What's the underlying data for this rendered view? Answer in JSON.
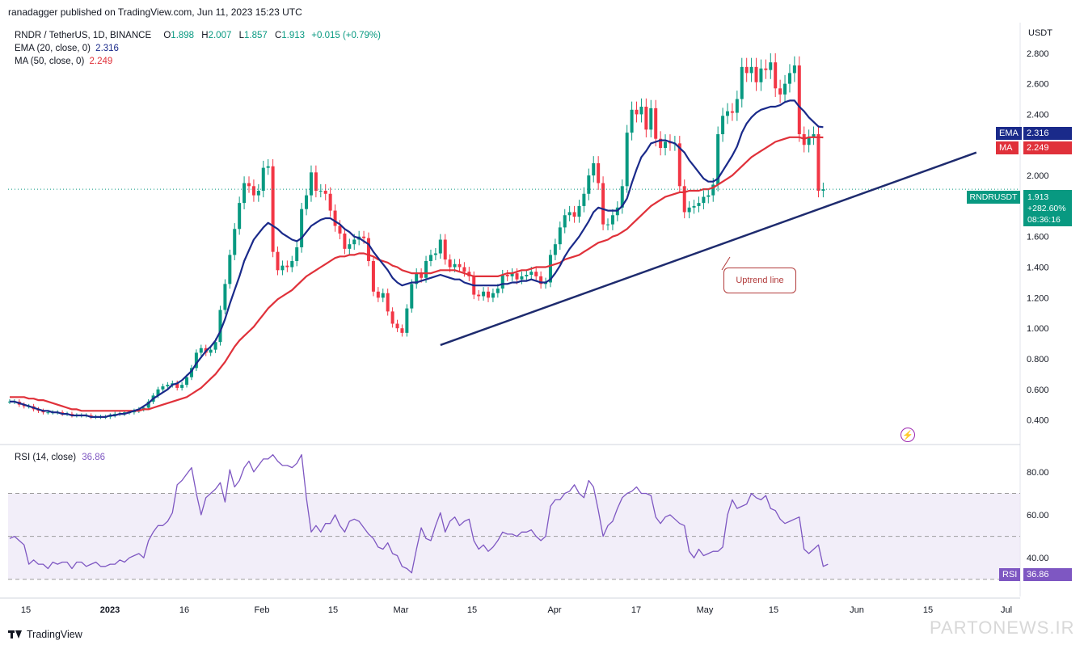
{
  "attribution": "ranadagger published on TradingView.com, Jun 11, 2023 15:23 UTC",
  "legend": {
    "symbol": "RNDR / TetherUS, 1D, BINANCE",
    "o_label": "O",
    "o_value": "1.898",
    "h_label": "H",
    "h_value": "2.007",
    "l_label": "L",
    "l_value": "1.857",
    "c_label": "C",
    "c_value": "1.913",
    "change": "+0.015 (+0.79%)",
    "ema_label": "EMA (20, close, 0)",
    "ema_value": "2.316",
    "ma_label": "MA (50, close, 0)",
    "ma_value": "2.249"
  },
  "rsi_legend": {
    "label": "RSI (14, close)",
    "value": "36.86"
  },
  "axis_unit": "USDT",
  "tags": {
    "ema_label": "EMA",
    "ema_value": "2.316",
    "ma_label": "MA",
    "ma_value": "2.249",
    "symbol": "RNDRUSDT",
    "price": "1.913",
    "change_pct": "+282.60%",
    "countdown": "08:36:16",
    "rsi_label": "RSI",
    "rsi_value": "36.86"
  },
  "annotation": "Uptrend line",
  "footer_logo": "TradingView",
  "watermark": "PARTONEWS.IR",
  "colors": {
    "up": "#089981",
    "down": "#f23645",
    "ema": "#1a2a8a",
    "ma": "#e0313a",
    "rsi": "#7e57c2",
    "trendline": "#1e2b6e"
  },
  "chart_data": {
    "type": "candlestick",
    "title": "RNDR / TetherUS, 1D, BINANCE",
    "x_ticks": [
      "15",
      "2023",
      "16",
      "Feb",
      "15",
      "Mar",
      "15",
      "Apr",
      "17",
      "May",
      "15",
      "Jun",
      "15",
      "Jul"
    ],
    "y_ticks": [
      "0.400",
      "0.600",
      "0.800",
      "1.000",
      "1.200",
      "1.400",
      "1.600",
      "1.800",
      "2.000",
      "2.200",
      "2.400",
      "2.600",
      "2.800"
    ],
    "ylim": [
      0.25,
      3.0
    ],
    "rsi_ticks": [
      "40.00",
      "60.00",
      "80.00"
    ],
    "rsi_bands": [
      30,
      50,
      70
    ],
    "trendline": {
      "from": {
        "date": "Mar 9",
        "value": 0.89
      },
      "to": {
        "date": "Jun 24",
        "value": 2.15
      }
    },
    "series": [
      {
        "name": "close",
        "values": [
          0.52,
          0.52,
          0.5,
          0.49,
          0.49,
          0.47,
          0.46,
          0.45,
          0.45,
          0.45,
          0.45,
          0.44,
          0.44,
          0.43,
          0.43,
          0.43,
          0.43,
          0.42,
          0.42,
          0.42,
          0.42,
          0.43,
          0.44,
          0.44,
          0.45,
          0.45,
          0.46,
          0.47,
          0.48,
          0.52,
          0.56,
          0.6,
          0.62,
          0.63,
          0.64,
          0.61,
          0.63,
          0.68,
          0.74,
          0.84,
          0.87,
          0.84,
          0.86,
          0.91,
          1.12,
          1.29,
          1.48,
          1.65,
          1.82,
          1.95,
          1.93,
          1.87,
          1.9,
          2.05,
          2.06,
          1.5,
          1.38,
          1.41,
          1.4,
          1.44,
          1.53,
          1.78,
          1.87,
          2.02,
          1.9,
          1.9,
          1.88,
          1.77,
          1.67,
          1.62,
          1.52,
          1.55,
          1.58,
          1.6,
          1.59,
          1.44,
          1.24,
          1.2,
          1.23,
          1.11,
          1.03,
          1.0,
          0.97,
          1.13,
          1.29,
          1.36,
          1.33,
          1.44,
          1.48,
          1.49,
          1.58,
          1.45,
          1.4,
          1.42,
          1.4,
          1.37,
          1.34,
          1.22,
          1.21,
          1.24,
          1.2,
          1.23,
          1.26,
          1.35,
          1.34,
          1.36,
          1.32,
          1.34,
          1.35,
          1.37,
          1.34,
          1.29,
          1.3,
          1.48,
          1.55,
          1.66,
          1.74,
          1.76,
          1.73,
          1.8,
          1.88,
          2.0,
          2.08,
          1.95,
          1.68,
          1.68,
          1.74,
          1.79,
          1.93,
          2.28,
          2.43,
          2.4,
          2.45,
          2.3,
          2.44,
          2.24,
          2.18,
          2.22,
          2.21,
          2.21,
          1.93,
          1.76,
          1.79,
          1.8,
          1.82,
          1.86,
          1.87,
          1.94,
          2.27,
          2.39,
          2.42,
          2.41,
          2.5,
          2.71,
          2.67,
          2.71,
          2.61,
          2.7,
          2.69,
          2.74,
          2.57,
          2.53,
          2.6,
          2.67,
          2.72,
          2.27,
          2.2,
          2.25,
          2.27,
          1.9,
          1.91
        ]
      },
      {
        "name": "EMA (20, close, 0)",
        "values": [
          0.52,
          0.52,
          0.51,
          0.5,
          0.49,
          0.48,
          0.47,
          0.46,
          0.46,
          0.45,
          0.45,
          0.44,
          0.44,
          0.43,
          0.43,
          0.43,
          0.43,
          0.42,
          0.42,
          0.42,
          0.42,
          0.43,
          0.43,
          0.44,
          0.44,
          0.45,
          0.46,
          0.47,
          0.49,
          0.51,
          0.54,
          0.56,
          0.58,
          0.6,
          0.63,
          0.64,
          0.66,
          0.69,
          0.72,
          0.77,
          0.81,
          0.85,
          0.88,
          0.92,
          0.98,
          1.06,
          1.16,
          1.25,
          1.34,
          1.44,
          1.51,
          1.58,
          1.62,
          1.66,
          1.69,
          1.67,
          1.65,
          1.62,
          1.6,
          1.58,
          1.57,
          1.59,
          1.63,
          1.67,
          1.69,
          1.71,
          1.72,
          1.72,
          1.7,
          1.68,
          1.65,
          1.63,
          1.6,
          1.59,
          1.57,
          1.55,
          1.5,
          1.46,
          1.42,
          1.38,
          1.33,
          1.3,
          1.28,
          1.29,
          1.3,
          1.3,
          1.31,
          1.32,
          1.33,
          1.34,
          1.35,
          1.34,
          1.33,
          1.32,
          1.32,
          1.3,
          1.29,
          1.28,
          1.28,
          1.28,
          1.28,
          1.28,
          1.28,
          1.29,
          1.29,
          1.3,
          1.3,
          1.31,
          1.31,
          1.32,
          1.31,
          1.3,
          1.3,
          1.32,
          1.36,
          1.41,
          1.47,
          1.52,
          1.56,
          1.6,
          1.65,
          1.7,
          1.76,
          1.79,
          1.78,
          1.77,
          1.77,
          1.77,
          1.8,
          1.85,
          1.95,
          2.04,
          2.12,
          2.16,
          2.21,
          2.22,
          2.23,
          2.23,
          2.22,
          2.21,
          2.18,
          2.15,
          2.1,
          2.06,
          2.02,
          1.98,
          1.96,
          1.96,
          1.98,
          2.03,
          2.08,
          2.13,
          2.19,
          2.28,
          2.34,
          2.38,
          2.41,
          2.43,
          2.44,
          2.45,
          2.45,
          2.46,
          2.48,
          2.49,
          2.49,
          2.45,
          2.42,
          2.38,
          2.35,
          2.32,
          2.316
        ]
      },
      {
        "name": "MA (50, close, 0)",
        "values": [
          0.55,
          0.55,
          0.55,
          0.55,
          0.54,
          0.54,
          0.53,
          0.53,
          0.52,
          0.51,
          0.5,
          0.49,
          0.48,
          0.47,
          0.47,
          0.46,
          0.46,
          0.46,
          0.46,
          0.46,
          0.46,
          0.46,
          0.46,
          0.46,
          0.46,
          0.46,
          0.46,
          0.46,
          0.47,
          0.47,
          0.48,
          0.49,
          0.5,
          0.51,
          0.52,
          0.53,
          0.54,
          0.55,
          0.57,
          0.59,
          0.61,
          0.64,
          0.67,
          0.7,
          0.74,
          0.78,
          0.83,
          0.88,
          0.92,
          0.95,
          0.98,
          1.01,
          1.05,
          1.09,
          1.13,
          1.16,
          1.19,
          1.21,
          1.23,
          1.25,
          1.28,
          1.31,
          1.34,
          1.36,
          1.38,
          1.4,
          1.42,
          1.44,
          1.46,
          1.47,
          1.47,
          1.48,
          1.48,
          1.49,
          1.49,
          1.48,
          1.47,
          1.45,
          1.44,
          1.43,
          1.41,
          1.4,
          1.38,
          1.37,
          1.36,
          1.36,
          1.36,
          1.36,
          1.36,
          1.37,
          1.38,
          1.38,
          1.38,
          1.38,
          1.37,
          1.36,
          1.35,
          1.34,
          1.34,
          1.34,
          1.34,
          1.34,
          1.34,
          1.35,
          1.36,
          1.36,
          1.37,
          1.38,
          1.38,
          1.39,
          1.4,
          1.4,
          1.4,
          1.41,
          1.42,
          1.43,
          1.45,
          1.46,
          1.47,
          1.48,
          1.5,
          1.52,
          1.54,
          1.56,
          1.57,
          1.58,
          1.6,
          1.61,
          1.63,
          1.65,
          1.68,
          1.71,
          1.74,
          1.77,
          1.8,
          1.82,
          1.84,
          1.86,
          1.87,
          1.88,
          1.89,
          1.89,
          1.9,
          1.9,
          1.9,
          1.91,
          1.91,
          1.92,
          1.94,
          1.96,
          1.98,
          2.0,
          2.03,
          2.06,
          2.09,
          2.12,
          2.14,
          2.16,
          2.18,
          2.2,
          2.22,
          2.23,
          2.24,
          2.25,
          2.25,
          2.25,
          2.24,
          2.25,
          2.25,
          2.25,
          2.249
        ]
      },
      {
        "name": "RSI (14, close)",
        "values": [
          49,
          50,
          48,
          46,
          37,
          39,
          37,
          37,
          35,
          38,
          37,
          38,
          38,
          35,
          38,
          38,
          36,
          37,
          38,
          36,
          36,
          37,
          37,
          39,
          38,
          40,
          41,
          42,
          40,
          48,
          52,
          55,
          55,
          57,
          61,
          74,
          76,
          79,
          82,
          70,
          60,
          68,
          70,
          72,
          75,
          66,
          81,
          73,
          76,
          82,
          85,
          80,
          83,
          86,
          86,
          88,
          85,
          83,
          83,
          82,
          84,
          88,
          68,
          52,
          55,
          52,
          56,
          56,
          60,
          55,
          52,
          57,
          58,
          57,
          54,
          51,
          49,
          45,
          44,
          47,
          42,
          41,
          36,
          35,
          33,
          44,
          54,
          49,
          48,
          55,
          61,
          52,
          57,
          59,
          55,
          57,
          58,
          48,
          44,
          46,
          43,
          45,
          48,
          52,
          51,
          51,
          50,
          52,
          52,
          53,
          50,
          48,
          50,
          64,
          67,
          67,
          70,
          71,
          74,
          70,
          68,
          76,
          73,
          62,
          50,
          55,
          57,
          63,
          68,
          70,
          71,
          73,
          70,
          70,
          69,
          59,
          56,
          59,
          60,
          58,
          56,
          55,
          43,
          40,
          44,
          41,
          42,
          43,
          43,
          45,
          60,
          67,
          63,
          64,
          65,
          70,
          68,
          67,
          69,
          63,
          62,
          58,
          56,
          57,
          58,
          59,
          44,
          42,
          44,
          46,
          36,
          37
        ]
      }
    ]
  }
}
